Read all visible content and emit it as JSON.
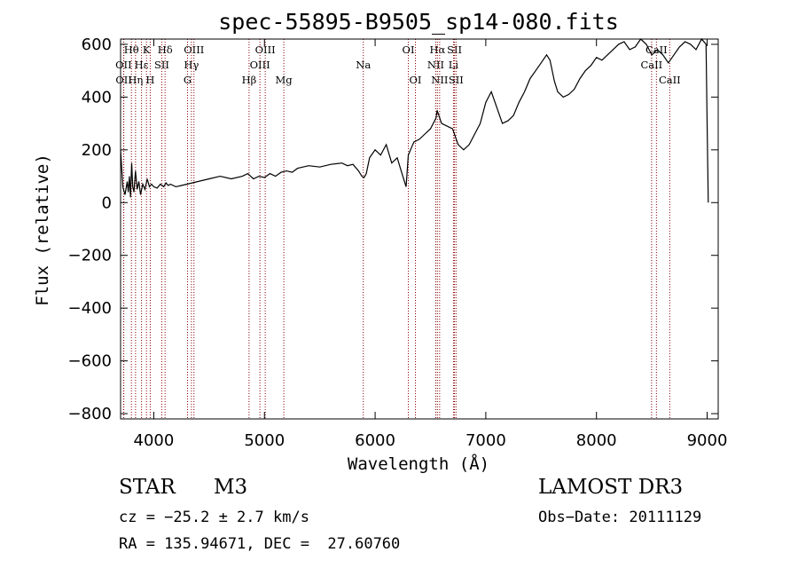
{
  "chart_data": {
    "type": "line",
    "title": "spec-55895-B9505_sp14-080.fits",
    "xlabel": "Wavelength (Å)",
    "ylabel": "Flux (relative)",
    "xlim": [
      3700,
      9100
    ],
    "ylim": [
      -820,
      620
    ],
    "xticks": [
      4000,
      5000,
      6000,
      7000,
      8000,
      9000
    ],
    "yticks": [
      -800,
      -600,
      -400,
      -200,
      0,
      200,
      400,
      600
    ],
    "grid": false,
    "line_color": "#000000",
    "marker_color": "#8b0000",
    "series": [
      {
        "name": "flux",
        "x": [
          3700,
          3720,
          3740,
          3760,
          3770,
          3780,
          3790,
          3800,
          3810,
          3820,
          3835,
          3850,
          3865,
          3880,
          3900,
          3920,
          3940,
          3960,
          3980,
          4000,
          4030,
          4060,
          4090,
          4110,
          4130,
          4150,
          4200,
          4250,
          4300,
          4350,
          4400,
          4500,
          4600,
          4700,
          4800,
          4850,
          4900,
          4950,
          5000,
          5050,
          5100,
          5150,
          5200,
          5250,
          5300,
          5400,
          5500,
          5600,
          5700,
          5750,
          5800,
          5850,
          5880,
          5900,
          5920,
          5950,
          6000,
          6050,
          6100,
          6150,
          6200,
          6250,
          6280,
          6300,
          6320,
          6350,
          6400,
          6450,
          6500,
          6550,
          6560,
          6600,
          6650,
          6700,
          6750,
          6800,
          6850,
          6900,
          6950,
          7000,
          7050,
          7100,
          7150,
          7200,
          7250,
          7300,
          7350,
          7400,
          7450,
          7500,
          7550,
          7580,
          7600,
          7620,
          7650,
          7700,
          7750,
          7800,
          7850,
          7900,
          7950,
          8000,
          8050,
          8100,
          8150,
          8200,
          8250,
          8300,
          8350,
          8400,
          8450,
          8500,
          8550,
          8600,
          8650,
          8700,
          8750,
          8800,
          8850,
          8900,
          8950,
          8990,
          9000,
          9010
        ],
        "y": [
          200,
          60,
          30,
          80,
          40,
          100,
          20,
          150,
          60,
          40,
          120,
          50,
          80,
          30,
          70,
          50,
          90,
          60,
          70,
          60,
          55,
          70,
          60,
          75,
          65,
          70,
          60,
          65,
          70,
          75,
          80,
          90,
          100,
          90,
          100,
          110,
          90,
          100,
          95,
          110,
          100,
          115,
          120,
          115,
          130,
          140,
          135,
          145,
          150,
          140,
          145,
          120,
          100,
          95,
          110,
          170,
          200,
          180,
          220,
          150,
          170,
          100,
          60,
          180,
          200,
          230,
          240,
          260,
          280,
          320,
          350,
          300,
          290,
          280,
          220,
          200,
          220,
          260,
          300,
          380,
          420,
          360,
          300,
          310,
          330,
          380,
          420,
          470,
          500,
          530,
          560,
          540,
          500,
          460,
          420,
          400,
          410,
          430,
          470,
          500,
          520,
          550,
          540,
          560,
          580,
          600,
          610,
          580,
          590,
          620,
          600,
          560,
          580,
          560,
          530,
          560,
          590,
          610,
          600,
          580,
          620,
          600,
          300,
          0
        ]
      }
    ],
    "spectral_lines": [
      {
        "label": "Hθ",
        "x": 3798,
        "row": 0
      },
      {
        "label": "K",
        "x": 3934,
        "row": 0
      },
      {
        "label": "Hδ",
        "x": 4102,
        "row": 0
      },
      {
        "label": "OIII",
        "x": 4363,
        "row": 0
      },
      {
        "label": "OIII",
        "x": 5007,
        "row": 0
      },
      {
        "label": "OI",
        "x": 6300,
        "row": 0
      },
      {
        "label": "Hα",
        "x": 6563,
        "row": 0
      },
      {
        "label": "SII",
        "x": 6717,
        "row": 0
      },
      {
        "label": "CaII",
        "x": 8542,
        "row": 0
      },
      {
        "label": "OII",
        "x": 3727,
        "row": 1
      },
      {
        "label": "Hε",
        "x": 3889,
        "row": 1
      },
      {
        "label": "SII",
        "x": 4072,
        "row": 1
      },
      {
        "label": "Hγ",
        "x": 4340,
        "row": 1
      },
      {
        "label": "OIII",
        "x": 4959,
        "row": 1
      },
      {
        "label": "Na",
        "x": 5893,
        "row": 1
      },
      {
        "label": "NII",
        "x": 6548,
        "row": 1
      },
      {
        "label": "Li",
        "x": 6708,
        "row": 1
      },
      {
        "label": "CaII",
        "x": 8498,
        "row": 1
      },
      {
        "label": "OII",
        "x": 3729,
        "row": 2
      },
      {
        "label": "Hη",
        "x": 3835,
        "row": 2
      },
      {
        "label": "H",
        "x": 3968,
        "row": 2
      },
      {
        "label": "G",
        "x": 4305,
        "row": 2
      },
      {
        "label": "Hβ",
        "x": 4861,
        "row": 2
      },
      {
        "label": "Mg",
        "x": 5175,
        "row": 2
      },
      {
        "label": "OI",
        "x": 6364,
        "row": 2
      },
      {
        "label": "NII",
        "x": 6583,
        "row": 2
      },
      {
        "label": "SII",
        "x": 6731,
        "row": 2
      },
      {
        "label": "CaII",
        "x": 8662,
        "row": 2
      }
    ]
  },
  "info": {
    "class": "STAR",
    "subclass": "M3",
    "survey": "LAMOST DR3",
    "cz": "cz = −25.2 ± 2.7 km/s",
    "obsdate": "Obs−Date: 20111129",
    "radec": "RA = 135.94671, DEC =  27.60760"
  }
}
